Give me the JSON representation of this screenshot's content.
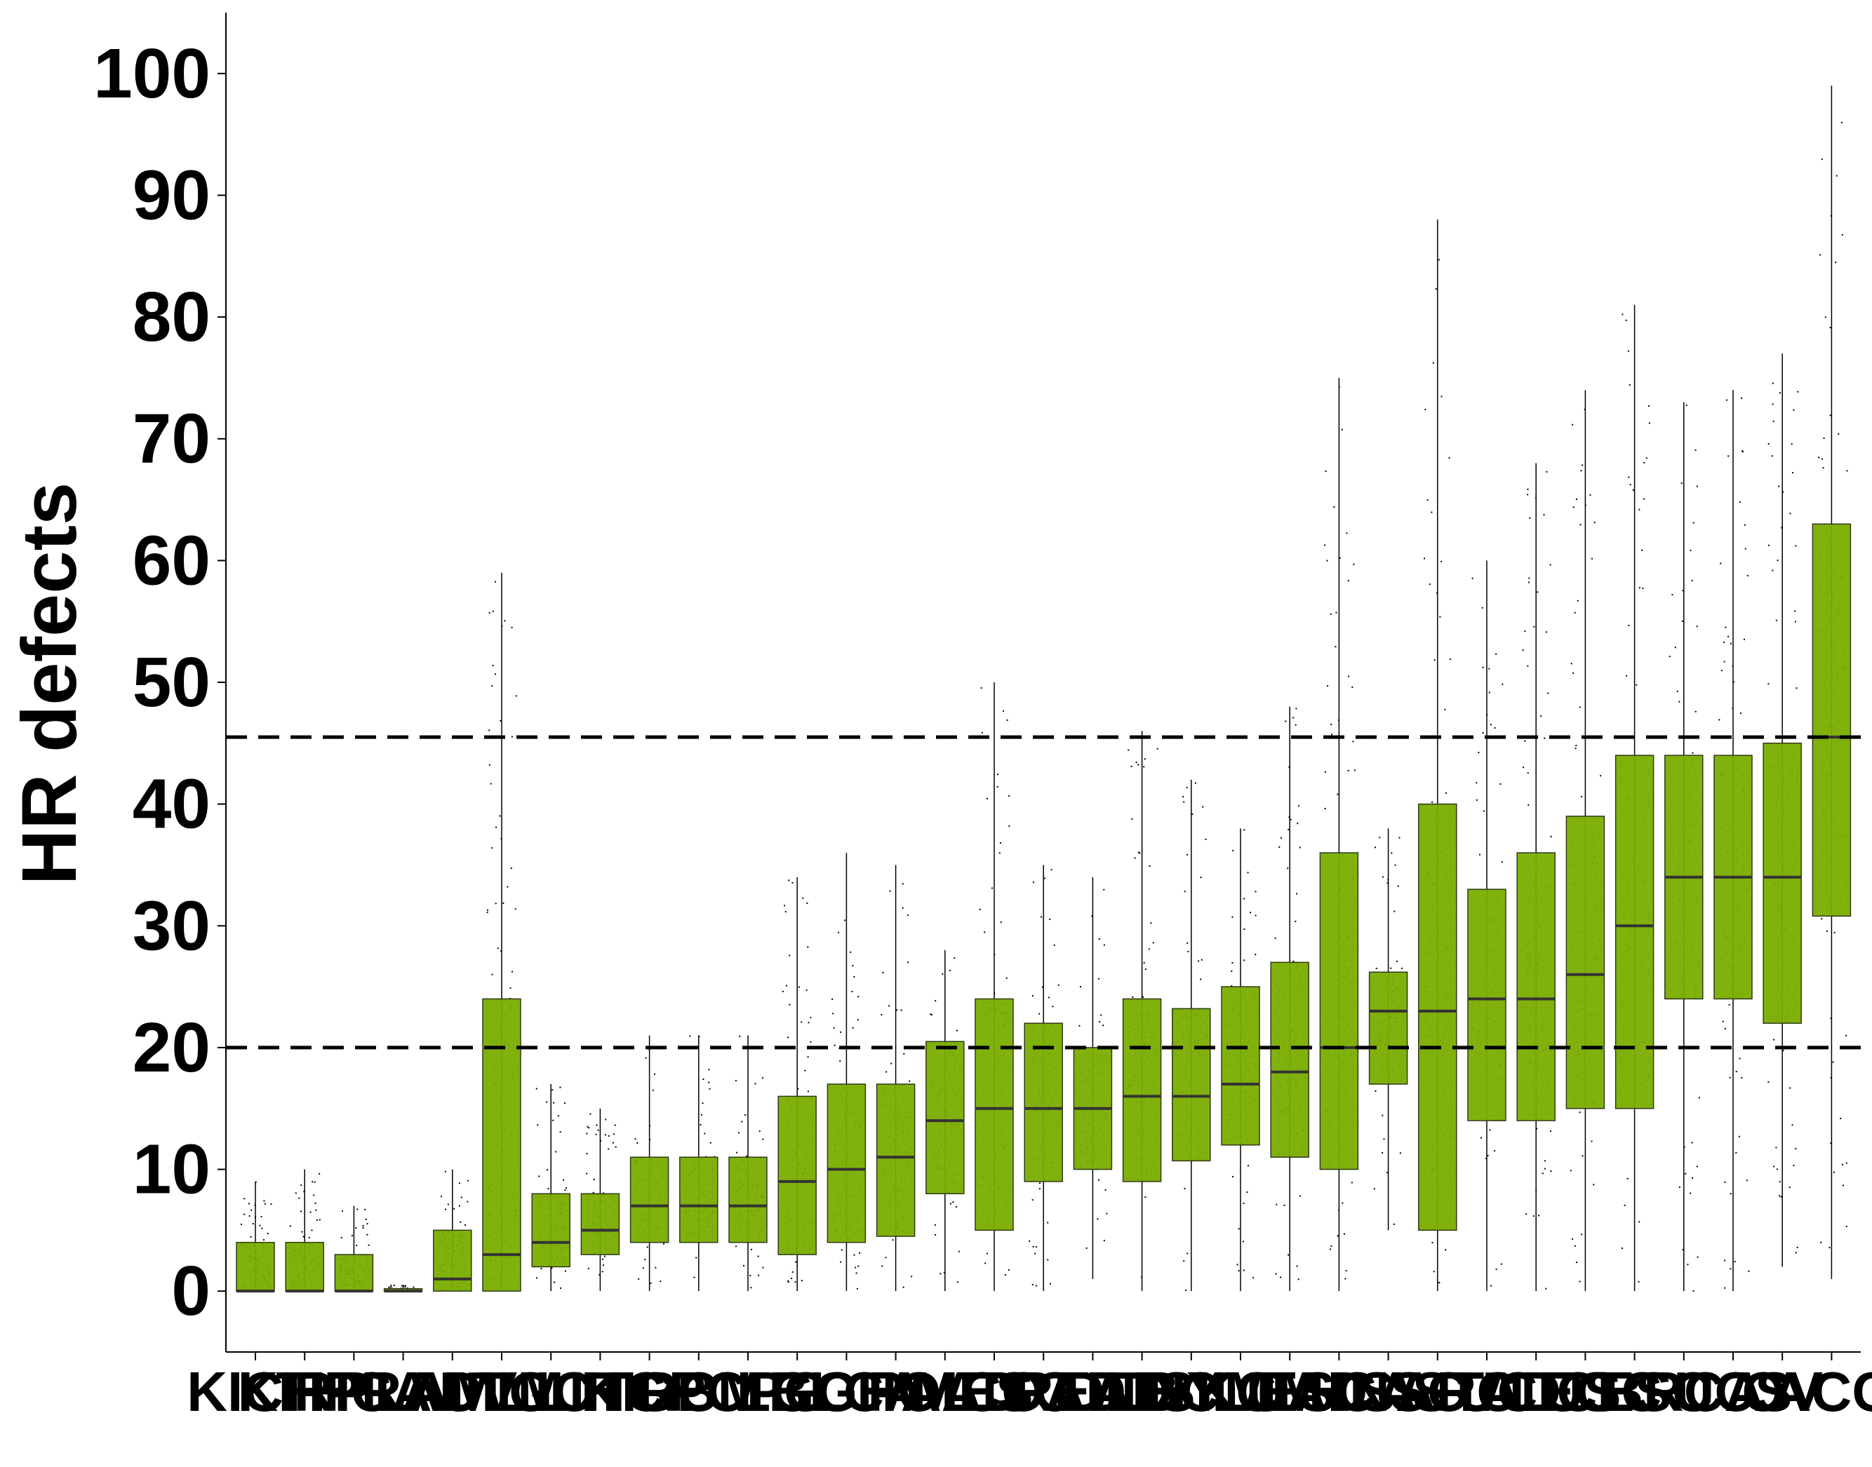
{
  "chart_data": {
    "type": "boxplot",
    "title": "",
    "xlabel": "",
    "ylabel": "HR defects",
    "ylim": [
      -5,
      105
    ],
    "yticks": [
      0,
      10,
      20,
      30,
      40,
      50,
      60,
      70,
      80,
      90,
      100
    ],
    "grid": false,
    "legend": "none",
    "box_color": "#7aad00",
    "box_edge_color": "#2f3a1a",
    "reference_lines": [
      20,
      45.5
    ],
    "categories": [
      "KICH",
      "KIRP",
      "THCA",
      "PRAD",
      "LAML",
      "UVM",
      "TGCT",
      "LIHC",
      "KIRC",
      "GBM",
      "PCPG",
      "LGG",
      "BLCA",
      "CHOL",
      "PAAD",
      "MESO",
      "COAD",
      "READ",
      "DLBC",
      "THYM",
      "SKCM",
      "LUAD",
      "ESCA",
      "HNSC",
      "SARC",
      "STAD",
      "UCEC",
      "LUSC",
      "CESC",
      "BRCA",
      "UCS",
      "OV",
      "ACC"
    ],
    "boxes": [
      {
        "q1": 0,
        "median": 0,
        "q3": 4,
        "whisker_low": 0,
        "whisker_high": 9
      },
      {
        "q1": 0,
        "median": 0,
        "q3": 4,
        "whisker_low": 0,
        "whisker_high": 10
      },
      {
        "q1": 0,
        "median": 0,
        "q3": 3,
        "whisker_low": 0,
        "whisker_high": 7
      },
      {
        "q1": 0,
        "median": 0,
        "q3": 0.2,
        "whisker_low": 0,
        "whisker_high": 0.5
      },
      {
        "q1": 0,
        "median": 1,
        "q3": 5,
        "whisker_low": 0,
        "whisker_high": 10
      },
      {
        "q1": 0,
        "median": 3,
        "q3": 24,
        "whisker_low": 0,
        "whisker_high": 59
      },
      {
        "q1": 2,
        "median": 4,
        "q3": 8,
        "whisker_low": 0,
        "whisker_high": 17
      },
      {
        "q1": 3,
        "median": 5,
        "q3": 8,
        "whisker_low": 0,
        "whisker_high": 15
      },
      {
        "q1": 4,
        "median": 7,
        "q3": 11,
        "whisker_low": 0,
        "whisker_high": 21
      },
      {
        "q1": 4,
        "median": 7,
        "q3": 11,
        "whisker_low": 0,
        "whisker_high": 21
      },
      {
        "q1": 4,
        "median": 7,
        "q3": 11,
        "whisker_low": 0,
        "whisker_high": 21
      },
      {
        "q1": 3,
        "median": 9,
        "q3": 16,
        "whisker_low": 0,
        "whisker_high": 34
      },
      {
        "q1": 4,
        "median": 10,
        "q3": 17,
        "whisker_low": 0,
        "whisker_high": 36
      },
      {
        "q1": 4.5,
        "median": 11,
        "q3": 17,
        "whisker_low": 0,
        "whisker_high": 35
      },
      {
        "q1": 8,
        "median": 14,
        "q3": 20.5,
        "whisker_low": 0,
        "whisker_high": 28
      },
      {
        "q1": 5,
        "median": 15,
        "q3": 24,
        "whisker_low": 0,
        "whisker_high": 50
      },
      {
        "q1": 9,
        "median": 15,
        "q3": 22,
        "whisker_low": 0,
        "whisker_high": 35
      },
      {
        "q1": 10,
        "median": 15,
        "q3": 20,
        "whisker_low": 1,
        "whisker_high": 34
      },
      {
        "q1": 9,
        "median": 16,
        "q3": 24,
        "whisker_low": 0,
        "whisker_high": 46
      },
      {
        "q1": 10.7,
        "median": 16,
        "q3": 23.2,
        "whisker_low": 0,
        "whisker_high": 42
      },
      {
        "q1": 12,
        "median": 17,
        "q3": 25,
        "whisker_low": 0,
        "whisker_high": 38
      },
      {
        "q1": 11,
        "median": 18,
        "q3": 27,
        "whisker_low": 0,
        "whisker_high": 48
      },
      {
        "q1": 10,
        "median": 20,
        "q3": 36,
        "whisker_low": 0,
        "whisker_high": 75
      },
      {
        "q1": 17,
        "median": 23,
        "q3": 26.2,
        "whisker_low": 5,
        "whisker_high": 38
      },
      {
        "q1": 5,
        "median": 23,
        "q3": 40,
        "whisker_low": 0,
        "whisker_high": 88
      },
      {
        "q1": 14,
        "median": 24,
        "q3": 33,
        "whisker_low": 0,
        "whisker_high": 60
      },
      {
        "q1": 14,
        "median": 24,
        "q3": 36,
        "whisker_low": 0,
        "whisker_high": 68
      },
      {
        "q1": 15,
        "median": 26,
        "q3": 39,
        "whisker_low": 0,
        "whisker_high": 74
      },
      {
        "q1": 15,
        "median": 30,
        "q3": 44,
        "whisker_low": 0,
        "whisker_high": 81
      },
      {
        "q1": 24,
        "median": 34,
        "q3": 44,
        "whisker_low": 0,
        "whisker_high": 73
      },
      {
        "q1": 24,
        "median": 34,
        "q3": 44,
        "whisker_low": 0,
        "whisker_high": 74
      },
      {
        "q1": 22,
        "median": 34,
        "q3": 45,
        "whisker_low": 2,
        "whisker_high": 77
      },
      {
        "q1": 30.8,
        "median": 45.5,
        "q3": 63,
        "whisker_low": 1,
        "whisker_high": 99
      }
    ]
  }
}
